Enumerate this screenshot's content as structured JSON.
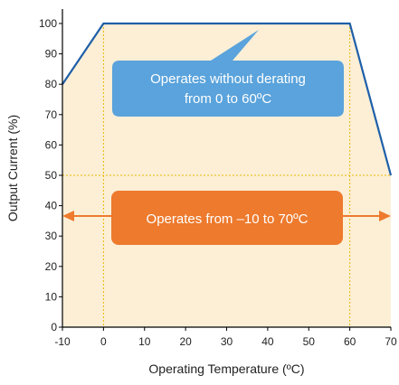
{
  "chart_data": {
    "type": "area",
    "title": "",
    "xlabel": "Operating Temperature (ºC)",
    "ylabel": "Output Current (%)",
    "xlim": [
      -10,
      70
    ],
    "ylim": [
      0,
      105
    ],
    "x_ticks": [
      "-10",
      "0",
      "10",
      "20",
      "30",
      "40",
      "50",
      "60",
      "70"
    ],
    "y_ticks": [
      "0",
      "10",
      "20",
      "30",
      "40",
      "50",
      "60",
      "70",
      "80",
      "90",
      "100"
    ],
    "series": [
      {
        "x": [
          -10,
          0,
          60,
          70
        ],
        "y": [
          80,
          100,
          100,
          50
        ]
      }
    ],
    "reference_lines": {
      "vertical": [
        0,
        60
      ],
      "horizontal": [
        50
      ]
    },
    "annotations": [
      {
        "text_lines": [
          "Operates without derating",
          "from 0 to 60ºC"
        ]
      },
      {
        "text_lines": [
          "Operates from –10 to 70ºC"
        ]
      }
    ],
    "colors": {
      "area_fill": "#fcefd6",
      "line": "#1f5fa8",
      "guide": "#e8b900",
      "callout_blue": "#5aa3dc",
      "callout_orange": "#ed7a2d",
      "arrow": "#ed7a2d",
      "axis": "#000000"
    }
  }
}
